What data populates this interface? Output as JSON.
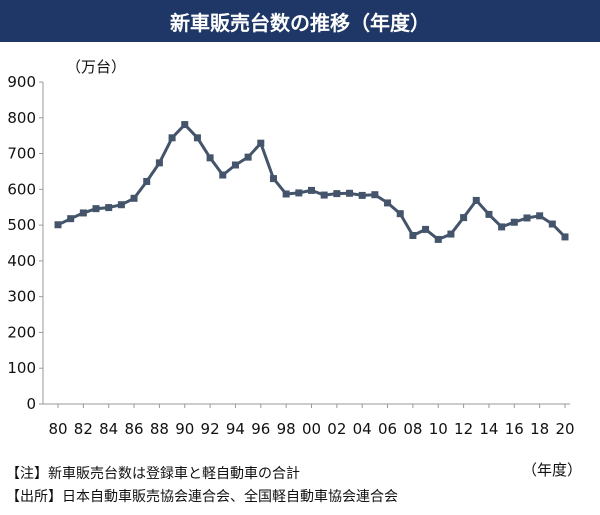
{
  "header": {
    "title": "新車販売台数の推移（年度）"
  },
  "chart_data": {
    "type": "line",
    "title": "新車販売台数の推移（年度）",
    "ylabel": "（万台）",
    "xlabel": "（年度）",
    "ylim": [
      0,
      900
    ],
    "yticks": [
      0,
      100,
      200,
      300,
      400,
      500,
      600,
      700,
      800,
      900
    ],
    "xlim": [
      1980,
      2020
    ],
    "xtick_labels": [
      "80",
      "82",
      "84",
      "86",
      "88",
      "90",
      "92",
      "94",
      "96",
      "98",
      "00",
      "02",
      "04",
      "06",
      "08",
      "10",
      "12",
      "14",
      "16",
      "18",
      "20"
    ],
    "grid": false,
    "series_color": "#44546a",
    "series": [
      {
        "x": [
          1980,
          1981,
          1982,
          1983,
          1984,
          1985,
          1986,
          1987,
          1988,
          1989,
          1990,
          1991,
          1992,
          1993,
          1994,
          1995,
          1996,
          1997,
          1998,
          1999,
          2000,
          2001,
          2002,
          2003,
          2004,
          2005,
          2006,
          2007,
          2008,
          2009,
          2010,
          2011,
          2012,
          2013,
          2014,
          2015,
          2016,
          2017,
          2018,
          2019,
          2020
        ],
        "values": [
          501,
          518,
          534,
          546,
          549,
          557,
          575,
          622,
          674,
          744,
          781,
          744,
          688,
          640,
          668,
          690,
          729,
          630,
          587,
          590,
          597,
          584,
          588,
          589,
          583,
          585,
          562,
          532,
          471,
          488,
          460,
          475,
          521,
          569,
          530,
          495,
          508,
          520,
          526,
          503,
          467
        ]
      }
    ]
  },
  "notes": [
    "【注】新車販売台数は登録車と軽自動車の合計",
    "【出所】日本自動車販売協会連合会、全国軽自動車協会連合会"
  ]
}
